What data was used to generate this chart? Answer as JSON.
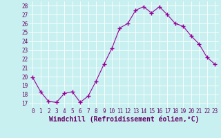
{
  "x": [
    0,
    1,
    2,
    3,
    4,
    5,
    6,
    7,
    8,
    9,
    10,
    11,
    12,
    13,
    14,
    15,
    16,
    17,
    18,
    19,
    20,
    21,
    22,
    23
  ],
  "y": [
    19.9,
    18.3,
    17.2,
    17.1,
    18.1,
    18.3,
    17.1,
    17.8,
    19.5,
    21.4,
    23.2,
    25.5,
    26.0,
    27.5,
    27.9,
    27.2,
    27.9,
    27.0,
    26.0,
    25.7,
    24.6,
    23.7,
    22.2,
    21.4
  ],
  "xlabel": "Windchill (Refroidissement éolien,°C)",
  "ylim": [
    16.5,
    28.5
  ],
  "yticks": [
    17,
    18,
    19,
    20,
    21,
    22,
    23,
    24,
    25,
    26,
    27,
    28
  ],
  "xticks": [
    0,
    1,
    2,
    3,
    4,
    5,
    6,
    7,
    8,
    9,
    10,
    11,
    12,
    13,
    14,
    15,
    16,
    17,
    18,
    19,
    20,
    21,
    22,
    23
  ],
  "line_color": "#990099",
  "marker": "+",
  "marker_size": 4,
  "line_width": 0.8,
  "bg_color": "#c8f0f0",
  "grid_color": "#ffffff",
  "tick_label_fontsize": 5.5,
  "xlabel_fontsize": 7.0
}
